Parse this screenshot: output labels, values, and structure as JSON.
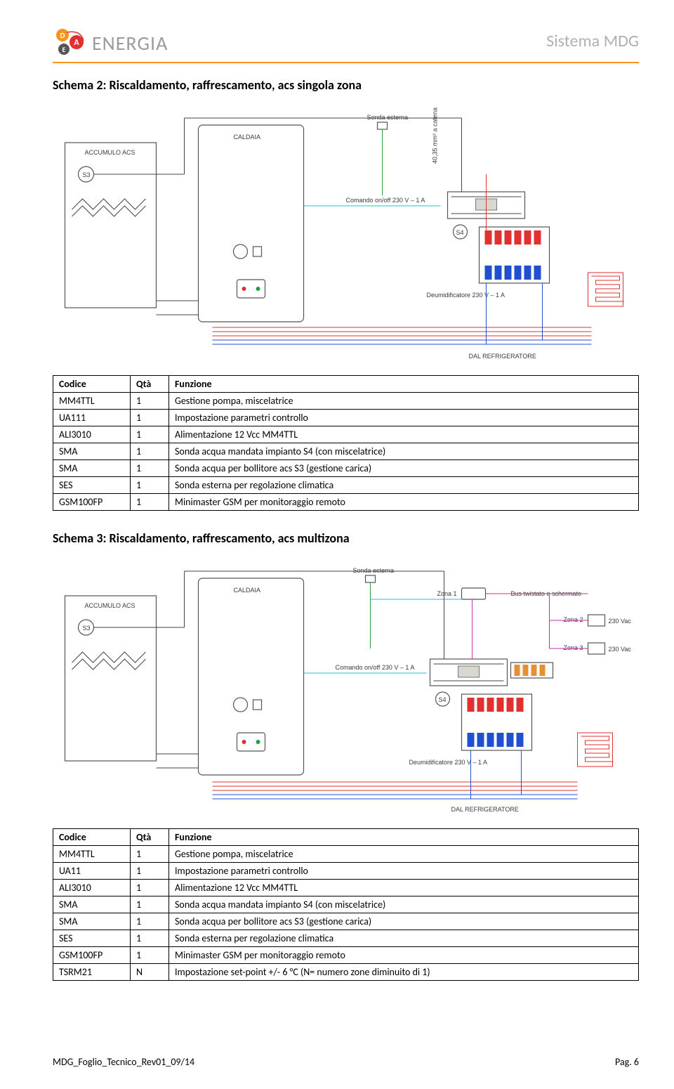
{
  "header": {
    "brand": "ENERGIA",
    "system_title": "Sistema MDG",
    "logo": {
      "letters": [
        "D",
        "A",
        "E"
      ],
      "colors": [
        "#f7941e",
        "#e03030",
        "#555555"
      ]
    },
    "underline_color": "#f7941e"
  },
  "section1": {
    "title": "Schema 2: Riscaldamento, raffrescamento, acs singola zona",
    "diagram": {
      "type": "schematic",
      "labels": {
        "accumulo": "ACCUMULO ACS",
        "s3": "S3",
        "caldaia": "CALDAIA",
        "sonda_esterna": "Sonda esterna",
        "comando": "Comando on/off\n230 V – 1 A",
        "s4": "S4",
        "deumid": "Deumidificatore\n230 V – 1 A",
        "dal_refrig": "DAL REFRIGERATORE",
        "s5": "40,35 mm² a catena"
      },
      "colors": {
        "red": "#e03030",
        "blue": "#2050d0",
        "green": "#20a040",
        "cyan": "#20c0d0",
        "black": "#444444",
        "magenta": "#c030a0"
      }
    },
    "table": {
      "columns": [
        "Codice",
        "Qtà",
        "Funzione"
      ],
      "rows": [
        [
          "MM4TTL",
          "1",
          "Gestione pompa, miscelatrice"
        ],
        [
          "UA111",
          "1",
          "Impostazione parametri controllo"
        ],
        [
          "ALI3010",
          "1",
          "Alimentazione 12 Vcc MM4TTL"
        ],
        [
          "SMA",
          "1",
          "Sonda acqua mandata impianto S4 (con miscelatrice)"
        ],
        [
          "SMA",
          "1",
          "Sonda acqua per bollitore acs S3 (gestione carica)"
        ],
        [
          "SES",
          "1",
          "Sonda esterna per regolazione climatica"
        ],
        [
          "GSM100FP",
          "1",
          "Minimaster GSM per monitoraggio remoto"
        ]
      ]
    }
  },
  "section2": {
    "title": "Schema 3: Riscaldamento, raffrescamento, acs multizona",
    "diagram": {
      "type": "schematic",
      "labels": {
        "accumulo": "ACCUMULO ACS",
        "s3": "S3",
        "caldaia": "CALDAIA",
        "sonda_esterna": "Sonda esterna",
        "comando": "Comando on/off\n230 V – 1 A",
        "s4": "S4",
        "deumid": "Deumidificatore\n230 V – 1 A",
        "dal_refrig": "DAL REFRIGERATORE",
        "zona1": "Zona 1",
        "zona2": "Zona 2",
        "zona3": "Zona 3",
        "vac": "230 Vac",
        "bus": "Bus twistato e schermato"
      }
    },
    "table": {
      "columns": [
        "Codice",
        "Qtà",
        "Funzione"
      ],
      "rows": [
        [
          "MM4TTL",
          "1",
          "Gestione pompa, miscelatrice"
        ],
        [
          "UA11",
          "1",
          "Impostazione parametri controllo"
        ],
        [
          "ALI3010",
          "1",
          "Alimentazione 12 Vcc MM4TTL"
        ],
        [
          "SMA",
          "1",
          "Sonda acqua mandata impianto S4 (con miscelatrice)"
        ],
        [
          "SMA",
          "1",
          "Sonda acqua per bollitore acs S3 (gestione carica)"
        ],
        [
          "SES",
          "1",
          "Sonda esterna per regolazione climatica"
        ],
        [
          "GSM100FP",
          "1",
          "Minimaster GSM per monitoraggio remoto"
        ],
        [
          "TSRM21",
          "N",
          "Impostazione set-point +/- 6 °C (N= numero zone diminuito di 1)"
        ]
      ]
    }
  },
  "footer": {
    "doc_id": "MDG_Foglio_Tecnico_Rev01_09/14",
    "page": "Pag. 6"
  }
}
